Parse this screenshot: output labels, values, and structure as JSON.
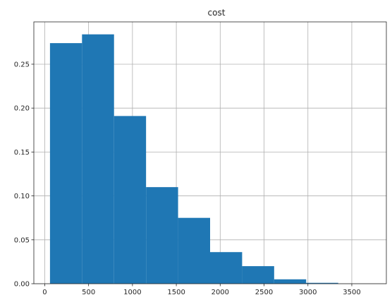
{
  "chart_data": {
    "type": "bar",
    "title": "cost",
    "xlabel": "",
    "ylabel": "",
    "bins": [
      {
        "x0": 60,
        "x1": 425,
        "value": 0.274
      },
      {
        "x0": 425,
        "x1": 790,
        "value": 0.284
      },
      {
        "x0": 790,
        "x1": 1155,
        "value": 0.191
      },
      {
        "x0": 1155,
        "x1": 1520,
        "value": 0.11
      },
      {
        "x0": 1520,
        "x1": 1885,
        "value": 0.075
      },
      {
        "x0": 1885,
        "x1": 2250,
        "value": 0.036
      },
      {
        "x0": 2250,
        "x1": 2615,
        "value": 0.02
      },
      {
        "x0": 2615,
        "x1": 2980,
        "value": 0.005
      },
      {
        "x0": 2980,
        "x1": 3345,
        "value": 0.001
      },
      {
        "x0": 3345,
        "x1": 3710,
        "value": 0.0
      }
    ],
    "xlim": [
      -124,
      3894
    ],
    "ylim": [
      0,
      0.2982
    ],
    "xticks": [
      0,
      500,
      1000,
      1500,
      2000,
      2500,
      3000,
      3500
    ],
    "xtick_labels": [
      "0",
      "500",
      "1000",
      "1500",
      "2000",
      "2500",
      "3000",
      "3500"
    ],
    "yticks": [
      0.0,
      0.05,
      0.1,
      0.15,
      0.2,
      0.25
    ],
    "ytick_labels": [
      "0.00",
      "0.05",
      "0.10",
      "0.15",
      "0.20",
      "0.25"
    ],
    "grid": true,
    "bar_color": "#1f77b4"
  }
}
